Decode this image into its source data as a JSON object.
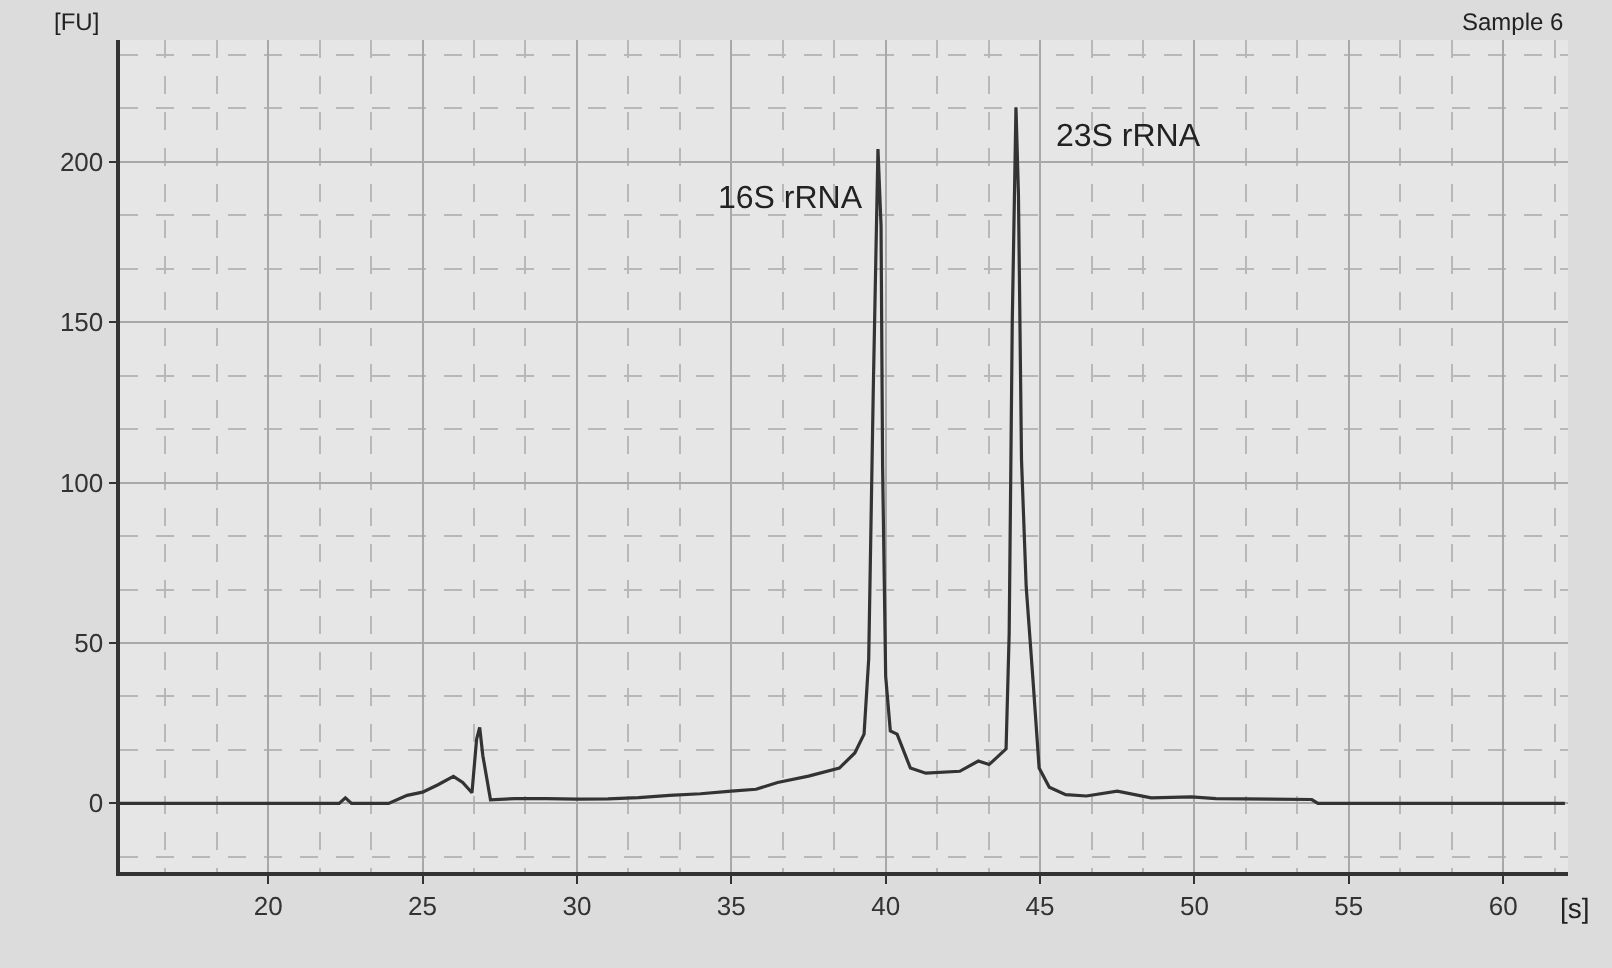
{
  "chart_data": {
    "type": "line",
    "title": "Sample 6",
    "xlabel": "[s]",
    "ylabel": "[FU]",
    "annotations": [
      {
        "text": "16S rRNA",
        "x": 39.75,
        "y": 204
      },
      {
        "text": "23S rRNA",
        "x": 44.22,
        "y": 217
      }
    ],
    "series": [
      {
        "color": "#333333",
        "x": [
          15.2,
          22.3,
          22.5,
          22.7,
          23.9,
          24.5,
          25.0,
          25.5,
          26.0,
          26.3,
          26.6,
          26.75,
          26.85,
          26.95,
          27.2,
          28.0,
          29.0,
          30.0,
          31.0,
          32.0,
          33.0,
          34.0,
          35.0,
          35.8,
          36.5,
          37.5,
          38.5,
          39.0,
          39.3,
          39.45,
          39.6,
          39.75,
          39.85,
          39.9,
          40.0,
          40.15,
          40.37,
          40.8,
          41.3,
          42.4,
          43.0,
          43.35,
          43.9,
          44.0,
          44.1,
          44.22,
          44.3,
          44.4,
          44.55,
          44.76,
          44.97,
          45.3,
          45.83,
          46.5,
          47.5,
          48.6,
          49.9,
          50.7,
          53.8,
          54.0,
          62.0
        ],
        "values": [
          0,
          0,
          1.7,
          0,
          0,
          2.5,
          3.5,
          5.8,
          8.4,
          6.5,
          3.3,
          20,
          23.7,
          15,
          1.1,
          1.5,
          1.5,
          1.3,
          1.4,
          1.8,
          2.5,
          3.0,
          3.8,
          4.4,
          6.5,
          8.5,
          11,
          15.7,
          21.6,
          45,
          130,
          204,
          180,
          105,
          39.6,
          22.6,
          21.6,
          11,
          9.4,
          10,
          13.2,
          12.1,
          17,
          53,
          150,
          217,
          190,
          107,
          67.7,
          40,
          11,
          5,
          2.7,
          2.3,
          3.8,
          1.7,
          2,
          1.5,
          1.2,
          0,
          0
        ]
      }
    ],
    "xlim": [
      15.2,
      62.1
    ],
    "ylim": [
      -21.4,
      238
    ],
    "xticks": [
      20,
      25,
      30,
      35,
      40,
      45,
      50,
      55,
      60
    ],
    "yticks": [
      0,
      50,
      100,
      150,
      200
    ],
    "grid": true,
    "marker": "none",
    "line_style": "solid"
  }
}
